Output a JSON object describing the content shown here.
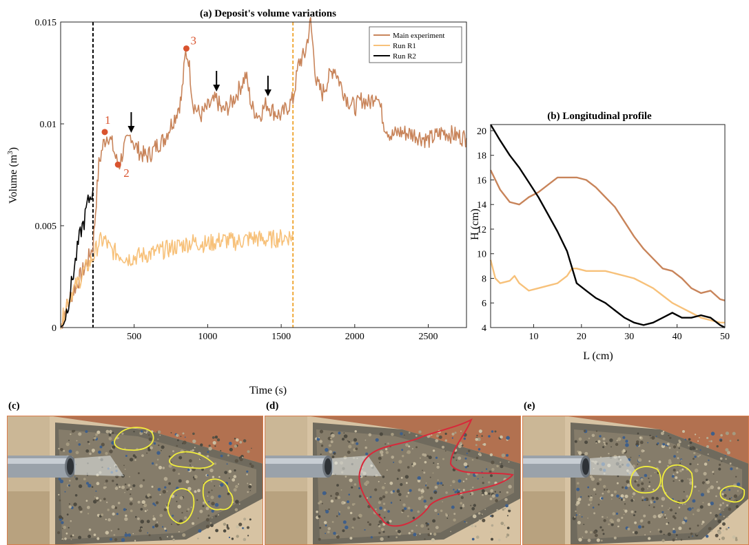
{
  "colors": {
    "main": "#c8845a",
    "r1": "#f7c17a",
    "r2": "#000000",
    "marker": "#d9532e",
    "vline_r2": "#000000",
    "vline_r1": "#f0a838",
    "outline_yellow": "#f2ee3c",
    "outline_red": "#d8283a"
  },
  "chart_data": [
    {
      "type": "line",
      "title": "(a) Deposit's volume variations",
      "xlabel": "Time (s)",
      "ylabel": "Volume (m",
      "ylabel_sup": "3",
      "ylabel_close": ")",
      "xlim": [
        0,
        2760
      ],
      "ylim": [
        0,
        0.015
      ],
      "xticks": [
        "500",
        "1000",
        "1500",
        "2000",
        "2500"
      ],
      "yticks": [
        "0",
        "0.005",
        "0.01",
        "0.015"
      ],
      "grid": false,
      "legend_position": "top-right",
      "series": [
        {
          "name": "Main experiment",
          "color_key": "main",
          "x": [
            0,
            30,
            60,
            100,
            140,
            180,
            220,
            260,
            290,
            320,
            350,
            380,
            400,
            430,
            460,
            480,
            500,
            540,
            580,
            620,
            660,
            700,
            740,
            780,
            820,
            850,
            870,
            900,
            950,
            1000,
            1060,
            1100,
            1150,
            1200,
            1260,
            1300,
            1350,
            1400,
            1450,
            1500,
            1580,
            1620,
            1660,
            1700,
            1740,
            1780,
            1820,
            1860,
            1900,
            1950,
            2000,
            2050,
            2100,
            2150,
            2200,
            2250,
            2300,
            2400,
            2500,
            2600,
            2700,
            2760
          ],
          "y": [
            0,
            0.0008,
            0.0014,
            0.002,
            0.0026,
            0.0032,
            0.004,
            0.008,
            0.009,
            0.0095,
            0.009,
            0.0082,
            0.008,
            0.0088,
            0.0092,
            0.0095,
            0.009,
            0.0086,
            0.0084,
            0.0086,
            0.009,
            0.0092,
            0.0098,
            0.0104,
            0.0112,
            0.0135,
            0.0132,
            0.011,
            0.0104,
            0.0108,
            0.0112,
            0.0106,
            0.0109,
            0.0115,
            0.0124,
            0.0108,
            0.0104,
            0.011,
            0.0106,
            0.0104,
            0.0112,
            0.013,
            0.0134,
            0.015,
            0.012,
            0.0115,
            0.0122,
            0.0128,
            0.012,
            0.0112,
            0.0108,
            0.0112,
            0.011,
            0.0116,
            0.01,
            0.0094,
            0.0096,
            0.0095,
            0.0092,
            0.0096,
            0.0094,
            0.0093
          ]
        },
        {
          "name": "Run R1",
          "color_key": "r1",
          "x": [
            0,
            40,
            80,
            120,
            160,
            200,
            230,
            260,
            300,
            340,
            400,
            460,
            520,
            600,
            700,
            800,
            900,
            1000,
            1100,
            1200,
            1300,
            1400,
            1500,
            1580
          ],
          "y": [
            0,
            0.0012,
            0.0018,
            0.0022,
            0.0028,
            0.0032,
            0.0036,
            0.0042,
            0.0043,
            0.0038,
            0.0036,
            0.0034,
            0.0035,
            0.0036,
            0.0038,
            0.004,
            0.0042,
            0.0041,
            0.0043,
            0.0042,
            0.0044,
            0.0043,
            0.0044,
            0.0045
          ]
        },
        {
          "name": "Run R2",
          "color_key": "r2",
          "x": [
            0,
            20,
            40,
            60,
            80,
            100,
            120,
            140,
            160,
            180,
            200,
            220
          ],
          "y": [
            0,
            0.0002,
            0.0008,
            0.0015,
            0.0024,
            0.0032,
            0.0041,
            0.0048,
            0.0052,
            0.006,
            0.0064,
            0.0068
          ]
        }
      ],
      "vlines": [
        {
          "x": 220,
          "color_key": "vline_r2"
        },
        {
          "x": 1580,
          "color_key": "vline_r1"
        }
      ],
      "points": [
        {
          "label": "1",
          "x": 300,
          "y": 0.0096
        },
        {
          "label": "2",
          "x": 390,
          "y": 0.008
        },
        {
          "label": "3",
          "x": 855,
          "y": 0.0137
        }
      ],
      "arrows_at_x": [
        480,
        1060,
        1410
      ]
    },
    {
      "type": "line",
      "title": "(b) Longitudinal profile",
      "xlabel": "L (cm)",
      "ylabel": "H (cm)",
      "xlim": [
        1,
        50
      ],
      "ylim": [
        4,
        20.5
      ],
      "xticks": [
        "10",
        "20",
        "30",
        "40",
        "50"
      ],
      "yticks": [
        "4",
        "6",
        "8",
        "10",
        "12",
        "14",
        "16",
        "18",
        "20"
      ],
      "grid": false,
      "series": [
        {
          "color_key": "main",
          "x": [
            1,
            3,
            5,
            7,
            9,
            11,
            13,
            15,
            17,
            19,
            21,
            23,
            25,
            27,
            29,
            31,
            33,
            35,
            37,
            39,
            41,
            43,
            45,
            47,
            49,
            50
          ],
          "y": [
            16.8,
            15.2,
            14.2,
            14.0,
            14.6,
            15.0,
            15.6,
            16.2,
            16.2,
            16.2,
            16.0,
            15.4,
            14.6,
            13.8,
            12.6,
            11.4,
            10.4,
            9.6,
            8.8,
            8.6,
            8.0,
            7.2,
            6.8,
            7.0,
            6.3,
            6.2
          ]
        },
        {
          "color_key": "r1",
          "x": [
            1,
            2,
            3,
            5,
            6,
            7,
            9,
            11,
            13,
            15,
            17,
            18,
            19,
            21,
            23,
            25,
            27,
            29,
            31,
            33,
            35,
            37,
            39,
            41,
            43,
            45,
            47,
            49,
            50
          ],
          "y": [
            9.5,
            8.0,
            7.6,
            7.8,
            8.2,
            7.6,
            7.0,
            7.2,
            7.4,
            7.6,
            8.2,
            8.8,
            8.8,
            8.6,
            8.6,
            8.6,
            8.4,
            8.2,
            8.0,
            7.6,
            7.2,
            6.6,
            6.0,
            5.6,
            5.2,
            4.8,
            4.6,
            4.4,
            4.4
          ]
        },
        {
          "color_key": "r2",
          "x": [
            1,
            3,
            5,
            7,
            9,
            11,
            13,
            15,
            17,
            19,
            21,
            23,
            25,
            27,
            29,
            31,
            33,
            35,
            37,
            39,
            41,
            43,
            45,
            47,
            49,
            50
          ],
          "y": [
            20.5,
            19.2,
            18.0,
            17.0,
            15.8,
            14.6,
            13.2,
            11.8,
            10.2,
            7.6,
            7.0,
            6.4,
            6.0,
            5.4,
            4.8,
            4.4,
            4.2,
            4.4,
            4.8,
            5.2,
            4.8,
            4.8,
            5.0,
            4.8,
            4.2,
            4.0
          ]
        }
      ]
    }
  ],
  "photos": [
    {
      "label": "(c)",
      "outline": "yellow-blobs"
    },
    {
      "label": "(d)",
      "outline": "red-contour"
    },
    {
      "label": "(e)",
      "outline": "yellow-blobs"
    }
  ]
}
